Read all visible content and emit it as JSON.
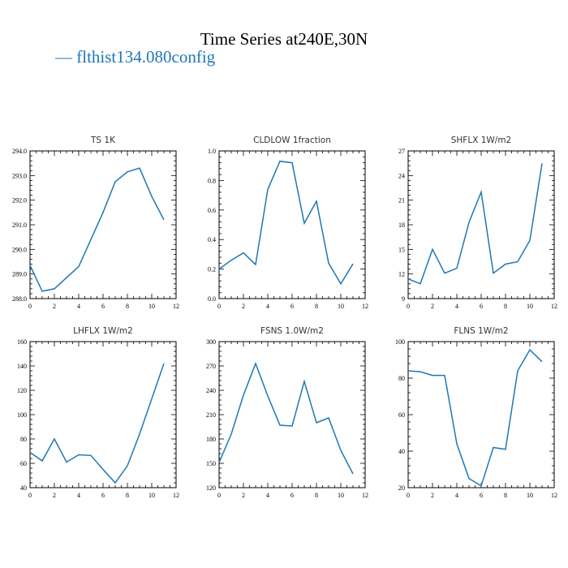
{
  "title": "Time Series at240E,30N",
  "legend": {
    "label": "flthist134.080config",
    "color": "#1f77b4"
  },
  "chart_data": [
    {
      "type": "line",
      "title": "TS   1K",
      "x": [
        0,
        1,
        2,
        3,
        4,
        5,
        6,
        7,
        8,
        9,
        10,
        11
      ],
      "values": [
        289.35,
        288.3,
        288.4,
        288.85,
        289.3,
        290.4,
        291.5,
        292.75,
        293.15,
        293.3,
        292.15,
        291.2
      ],
      "xlim": [
        0,
        12
      ],
      "ylim": [
        288,
        294
      ],
      "xticks": [
        0,
        2,
        4,
        6,
        8,
        10,
        12
      ],
      "yticks": [
        288.0,
        289.0,
        290.0,
        291.0,
        292.0,
        293.0,
        294.0
      ],
      "yticklabels": [
        "288.0",
        "289.0",
        "290.0",
        "291.0",
        "292.0",
        "293.0",
        "294.0"
      ]
    },
    {
      "type": "line",
      "title": "CLDLOW   1fraction",
      "x": [
        0,
        1,
        2,
        3,
        4,
        5,
        6,
        7,
        8,
        9,
        10,
        11
      ],
      "values": [
        0.2,
        0.26,
        0.31,
        0.23,
        0.74,
        0.93,
        0.92,
        0.51,
        0.66,
        0.24,
        0.1,
        0.235
      ],
      "xlim": [
        0,
        12
      ],
      "ylim": [
        0,
        1
      ],
      "xticks": [
        0,
        2,
        4,
        6,
        8,
        10,
        12
      ],
      "yticks": [
        0,
        0.2,
        0.4,
        0.6,
        0.8,
        1.0
      ],
      "yticklabels": [
        "0.0",
        "0.2",
        "0.4",
        "0.6",
        "0.8",
        "1.0"
      ]
    },
    {
      "type": "line",
      "title": "SHFLX   1W/m2",
      "x": [
        0,
        1,
        2,
        3,
        4,
        5,
        6,
        7,
        8,
        9,
        10,
        11
      ],
      "values": [
        11.4,
        10.8,
        15.0,
        12.1,
        12.7,
        18.3,
        22.0,
        12.1,
        13.2,
        13.5,
        16.1,
        25.5
      ],
      "xlim": [
        0,
        12
      ],
      "ylim": [
        9,
        27
      ],
      "xticks": [
        0,
        2,
        4,
        6,
        8,
        10,
        12
      ],
      "yticks": [
        9,
        12,
        15,
        18,
        21,
        24,
        27
      ],
      "yticklabels": [
        "9",
        "12",
        "15",
        "18",
        "21",
        "24",
        "27"
      ]
    },
    {
      "type": "line",
      "title": "LHFLX   1W/m2",
      "x": [
        0,
        1,
        2,
        3,
        4,
        5,
        6,
        7,
        8,
        9,
        10,
        11
      ],
      "values": [
        69,
        62,
        80,
        61,
        67,
        66.5,
        55,
        44,
        58,
        84,
        113,
        142
      ],
      "xlim": [
        0,
        12
      ],
      "ylim": [
        40,
        160
      ],
      "xticks": [
        0,
        2,
        4,
        6,
        8,
        10,
        12
      ],
      "yticks": [
        40,
        60,
        80,
        100,
        120,
        140,
        160
      ],
      "yticklabels": [
        "40",
        "60",
        "80",
        "100",
        "120",
        "140",
        "160"
      ]
    },
    {
      "type": "line",
      "title": "FSNS   1.0W/m2",
      "x": [
        0,
        1,
        2,
        3,
        4,
        5,
        6,
        7,
        8,
        9,
        10,
        11
      ],
      "values": [
        151,
        186,
        234,
        273,
        233,
        197,
        196,
        251,
        200,
        206,
        166,
        137
      ],
      "xlim": [
        0,
        12
      ],
      "ylim": [
        120,
        300
      ],
      "xticks": [
        0,
        2,
        4,
        6,
        8,
        10,
        12
      ],
      "yticks": [
        120,
        150,
        180,
        210,
        240,
        270,
        300
      ],
      "yticklabels": [
        "120",
        "150",
        "180",
        "210",
        "240",
        "270",
        "300"
      ]
    },
    {
      "type": "line",
      "title": "FLNS   1W/m2",
      "x": [
        0,
        1,
        2,
        3,
        4,
        5,
        6,
        7,
        8,
        9,
        10,
        11
      ],
      "values": [
        84,
        83.5,
        81.5,
        81.5,
        44,
        25,
        21,
        42,
        41,
        84,
        95.5,
        89
      ],
      "xlim": [
        0,
        12
      ],
      "ylim": [
        20,
        100
      ],
      "xticks": [
        0,
        2,
        4,
        6,
        8,
        10,
        12
      ],
      "yticks": [
        20,
        40,
        60,
        80,
        100
      ],
      "yticklabels": [
        "20",
        "40",
        "60",
        "80",
        "100"
      ]
    }
  ]
}
